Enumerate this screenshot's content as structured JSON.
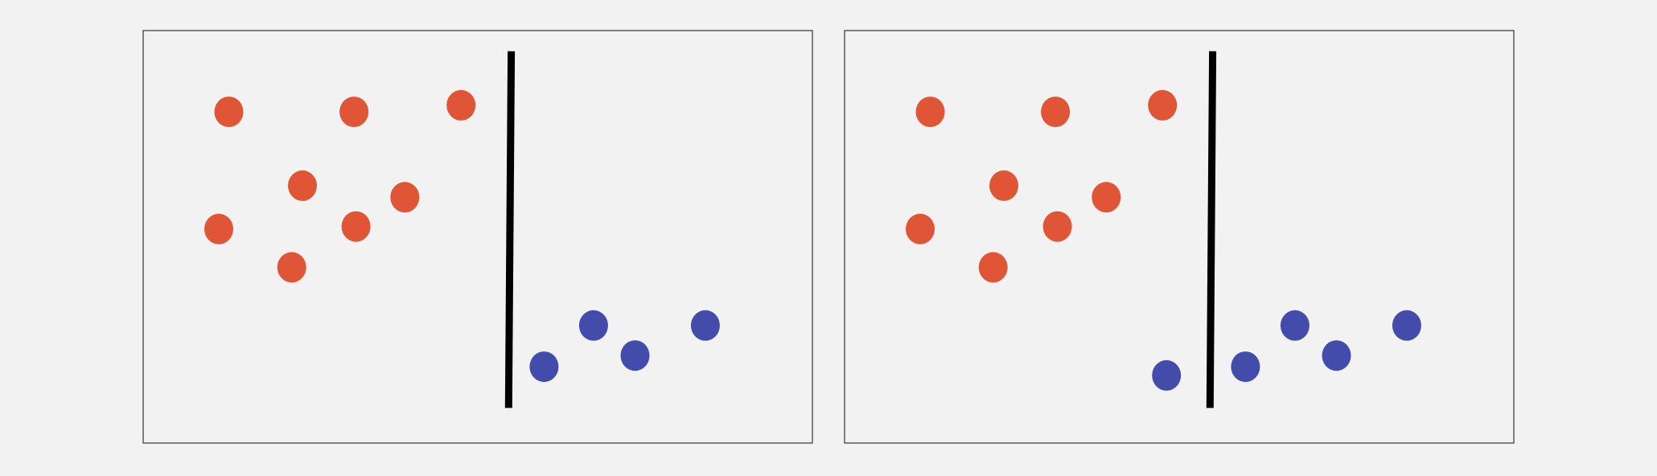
{
  "colors": {
    "background": "#f2f2f2",
    "frame": "#333333",
    "class_a": "#e05535",
    "class_b": "#434caa",
    "separator": "#000000"
  },
  "chart_data": [
    {
      "type": "scatter",
      "title": "",
      "xlabel": "",
      "ylabel": "",
      "xlim": [
        0,
        100
      ],
      "ylim": [
        0,
        100
      ],
      "grid": false,
      "series": [
        {
          "class": "a",
          "color": "#e05535",
          "points": [
            [
              12.8,
              80.3
            ],
            [
              31.5,
              80.3
            ],
            [
              47.5,
              81.9
            ],
            [
              23.8,
              62.4
            ],
            [
              39.1,
              59.6
            ],
            [
              11.3,
              51.9
            ],
            [
              31.8,
              52.5
            ],
            [
              22.2,
              42.6
            ]
          ]
        },
        {
          "class": "b",
          "color": "#434caa",
          "points": [
            [
              67.3,
              28.5
            ],
            [
              84.0,
              28.5
            ],
            [
              73.5,
              21.2
            ],
            [
              59.9,
              18.5
            ]
          ]
        }
      ],
      "separator": {
        "x1": 55.0,
        "y1": 95.0,
        "x2": 54.6,
        "y2": 8.5
      }
    },
    {
      "type": "scatter",
      "title": "",
      "xlabel": "",
      "ylabel": "",
      "xlim": [
        0,
        100
      ],
      "ylim": [
        0,
        100
      ],
      "grid": false,
      "series": [
        {
          "class": "a",
          "color": "#e05535",
          "points": [
            [
              12.8,
              80.3
            ],
            [
              31.5,
              80.3
            ],
            [
              47.5,
              81.9
            ],
            [
              23.8,
              62.4
            ],
            [
              39.1,
              59.6
            ],
            [
              11.3,
              51.9
            ],
            [
              31.8,
              52.5
            ],
            [
              22.2,
              42.6
            ]
          ]
        },
        {
          "class": "b",
          "color": "#434caa",
          "points": [
            [
              67.3,
              28.5
            ],
            [
              84.0,
              28.5
            ],
            [
              73.5,
              21.2
            ],
            [
              59.9,
              18.5
            ],
            [
              48.1,
              16.4
            ]
          ]
        }
      ],
      "separator": {
        "x1": 55.0,
        "y1": 95.0,
        "x2": 54.6,
        "y2": 8.5
      }
    }
  ]
}
